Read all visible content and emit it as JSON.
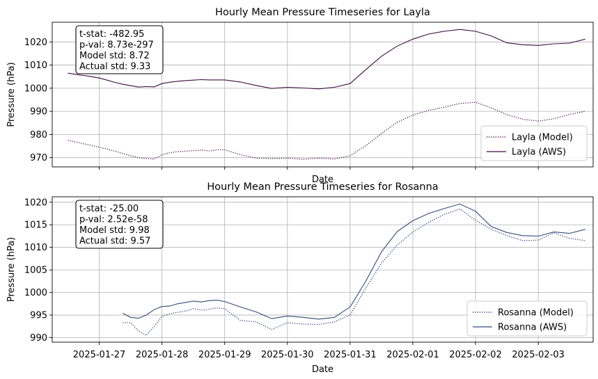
{
  "chart_data": [
    {
      "type": "line",
      "title": "Hourly Mean Pressure Timeseries for Layla",
      "xlabel": "Date",
      "ylabel": "Pressure (hPa)",
      "x_range": [
        "2025-01-26T06:00",
        "2025-02-03T21:00"
      ],
      "ylim": [
        966,
        1028.5
      ],
      "yticks": [
        970,
        980,
        990,
        1000,
        1010,
        1020
      ],
      "xticks": [
        "2025-01-27",
        "2025-01-28",
        "2025-01-29",
        "2025-01-30",
        "2025-01-31",
        "2025-02-01",
        "2025-02-02",
        "2025-02-03"
      ],
      "xtick_labels_visible": false,
      "grid": true,
      "legend_position": "lower right",
      "stats_box": [
        "t-stat: -482.95",
        "p-val: 8.73e-297",
        "Model std: 8.72",
        "Actual std: 9.33"
      ],
      "series": [
        {
          "name": "Layla (Model)",
          "style": "dotted",
          "color": "#4b0b4f",
          "x": [
            "2025-01-26T12:00",
            "2025-01-26T15:00",
            "2025-01-26T18:00",
            "2025-01-26T21:00",
            "2025-01-27T00:00",
            "2025-01-27T03:00",
            "2025-01-27T06:00",
            "2025-01-27T09:00",
            "2025-01-27T12:00",
            "2025-01-27T15:00",
            "2025-01-27T18:00",
            "2025-01-27T21:00",
            "2025-01-28T00:00",
            "2025-01-28T03:00",
            "2025-01-28T06:00",
            "2025-01-28T09:00",
            "2025-01-28T12:00",
            "2025-01-28T15:00",
            "2025-01-28T18:00",
            "2025-01-28T21:00",
            "2025-01-29T00:00",
            "2025-01-29T06:00",
            "2025-01-29T12:00",
            "2025-01-29T18:00",
            "2025-01-30T00:00",
            "2025-01-30T06:00",
            "2025-01-30T12:00",
            "2025-01-30T18:00",
            "2025-01-31T00:00",
            "2025-01-31T06:00",
            "2025-01-31T12:00",
            "2025-01-31T18:00",
            "2025-02-01T00:00",
            "2025-02-01T06:00",
            "2025-02-01T12:00",
            "2025-02-01T18:00",
            "2025-02-02T00:00",
            "2025-02-02T06:00",
            "2025-02-02T12:00",
            "2025-02-02T18:00",
            "2025-02-03T00:00",
            "2025-02-03T06:00",
            "2025-02-03T12:00",
            "2025-02-03T18:00"
          ],
          "values": [
            977.5,
            976.8,
            976.0,
            975.3,
            974.5,
            973.7,
            972.8,
            971.8,
            970.8,
            970.0,
            969.6,
            969.4,
            971.3,
            972.1,
            972.6,
            972.8,
            973.0,
            973.3,
            972.9,
            973.4,
            973.4,
            971.3,
            969.8,
            969.6,
            969.8,
            969.3,
            969.8,
            969.4,
            970.8,
            975.2,
            980.4,
            985.3,
            988.4,
            990.4,
            991.8,
            993.4,
            993.9,
            991.5,
            988.6,
            986.6,
            985.8,
            986.8,
            988.7,
            990.0
          ]
        },
        {
          "name": "Layla (AWS)",
          "style": "solid",
          "color": "#3e0a3f",
          "x": [
            "2025-01-26T12:00",
            "2025-01-26T15:00",
            "2025-01-26T18:00",
            "2025-01-26T21:00",
            "2025-01-27T00:00",
            "2025-01-27T03:00",
            "2025-01-27T06:00",
            "2025-01-27T09:00",
            "2025-01-27T12:00",
            "2025-01-27T15:00",
            "2025-01-27T18:00",
            "2025-01-27T21:00",
            "2025-01-28T00:00",
            "2025-01-28T03:00",
            "2025-01-28T06:00",
            "2025-01-28T09:00",
            "2025-01-28T12:00",
            "2025-01-28T15:00",
            "2025-01-28T18:00",
            "2025-01-28T21:00",
            "2025-01-29T00:00",
            "2025-01-29T06:00",
            "2025-01-29T12:00",
            "2025-01-29T18:00",
            "2025-01-30T00:00",
            "2025-01-30T06:00",
            "2025-01-30T12:00",
            "2025-01-30T18:00",
            "2025-01-31T00:00",
            "2025-01-31T06:00",
            "2025-01-31T12:00",
            "2025-01-31T18:00",
            "2025-02-01T00:00",
            "2025-02-01T06:00",
            "2025-02-01T12:00",
            "2025-02-01T18:00",
            "2025-02-02T00:00",
            "2025-02-02T06:00",
            "2025-02-02T12:00",
            "2025-02-02T18:00",
            "2025-02-03T00:00",
            "2025-02-03T06:00",
            "2025-02-03T12:00",
            "2025-02-03T18:00"
          ],
          "values": [
            1006.5,
            1006.0,
            1005.5,
            1005.0,
            1004.4,
            1003.5,
            1002.5,
            1001.7,
            1001.1,
            1000.5,
            1000.7,
            1000.6,
            1002.0,
            1002.6,
            1003.0,
            1003.3,
            1003.5,
            1003.7,
            1003.6,
            1003.6,
            1003.6,
            1002.7,
            1001.2,
            999.9,
            1000.4,
            1000.1,
            999.7,
            1000.4,
            1002.0,
            1008.0,
            1013.8,
            1018.2,
            1021.2,
            1023.4,
            1024.6,
            1025.4,
            1024.6,
            1022.6,
            1019.6,
            1018.8,
            1018.5,
            1019.2,
            1019.5,
            1021.2
          ]
        }
      ]
    },
    {
      "type": "line",
      "title": "Hourly Mean Pressure Timeseries for Rosanna",
      "xlabel": "Date",
      "ylabel": "Pressure (hPa)",
      "x_range": [
        "2025-01-26T06:00",
        "2025-02-03T21:00"
      ],
      "ylim": [
        989,
        1021.2
      ],
      "yticks": [
        990,
        995,
        1000,
        1005,
        1010,
        1015,
        1020
      ],
      "xticks": [
        "2025-01-27",
        "2025-01-28",
        "2025-01-29",
        "2025-01-30",
        "2025-01-31",
        "2025-02-01",
        "2025-02-02",
        "2025-02-03"
      ],
      "grid": true,
      "legend_position": "lower right",
      "stats_box": [
        "t-stat: -25.00",
        "p-val: 2.52e-58",
        "Model std: 9.98",
        "Actual std: 9.57"
      ],
      "series": [
        {
          "name": "Rosanna (Model)",
          "style": "dotted",
          "color": "#2b3c80",
          "x": [
            "2025-01-27T09:00",
            "2025-01-27T12:00",
            "2025-01-27T15:00",
            "2025-01-27T18:00",
            "2025-01-27T21:00",
            "2025-01-28T00:00",
            "2025-01-28T03:00",
            "2025-01-28T06:00",
            "2025-01-28T09:00",
            "2025-01-28T12:00",
            "2025-01-28T15:00",
            "2025-01-28T18:00",
            "2025-01-28T21:00",
            "2025-01-29T00:00",
            "2025-01-29T06:00",
            "2025-01-29T12:00",
            "2025-01-29T18:00",
            "2025-01-30T00:00",
            "2025-01-30T06:00",
            "2025-01-30T12:00",
            "2025-01-30T18:00",
            "2025-01-31T00:00",
            "2025-01-31T06:00",
            "2025-01-31T12:00",
            "2025-01-31T18:00",
            "2025-02-01T00:00",
            "2025-02-01T06:00",
            "2025-02-01T12:00",
            "2025-02-01T18:00",
            "2025-02-02T00:00",
            "2025-02-02T06:00",
            "2025-02-02T12:00",
            "2025-02-02T18:00",
            "2025-02-03T00:00",
            "2025-02-03T06:00",
            "2025-02-03T12:00",
            "2025-02-03T18:00"
          ],
          "values": [
            993.3,
            993.3,
            991.5,
            990.5,
            992.5,
            994.7,
            995.3,
            995.6,
            995.9,
            996.4,
            996.1,
            996.3,
            996.6,
            996.4,
            993.8,
            993.5,
            991.8,
            993.3,
            993.0,
            992.9,
            993.5,
            995.0,
            1001.0,
            1006.5,
            1010.5,
            1013.4,
            1015.5,
            1017.3,
            1018.5,
            1016.0,
            1014.0,
            1012.6,
            1011.5,
            1011.6,
            1013.2,
            1012.0,
            1011.5
          ]
        },
        {
          "name": "Rosanna (AWS)",
          "style": "solid",
          "color": "#2f4c7a",
          "x": [
            "2025-01-27T09:00",
            "2025-01-27T12:00",
            "2025-01-27T15:00",
            "2025-01-27T18:00",
            "2025-01-27T21:00",
            "2025-01-28T00:00",
            "2025-01-28T03:00",
            "2025-01-28T06:00",
            "2025-01-28T09:00",
            "2025-01-28T12:00",
            "2025-01-28T15:00",
            "2025-01-28T18:00",
            "2025-01-28T21:00",
            "2025-01-29T00:00",
            "2025-01-29T06:00",
            "2025-01-29T12:00",
            "2025-01-29T18:00",
            "2025-01-30T00:00",
            "2025-01-30T06:00",
            "2025-01-30T12:00",
            "2025-01-30T18:00",
            "2025-01-31T00:00",
            "2025-01-31T06:00",
            "2025-01-31T12:00",
            "2025-01-31T18:00",
            "2025-02-01T00:00",
            "2025-02-01T06:00",
            "2025-02-01T12:00",
            "2025-02-01T18:00",
            "2025-02-02T00:00",
            "2025-02-02T06:00",
            "2025-02-02T12:00",
            "2025-02-02T18:00",
            "2025-02-03T00:00",
            "2025-02-03T06:00",
            "2025-02-03T12:00",
            "2025-02-03T18:00"
          ],
          "values": [
            995.4,
            994.5,
            994.3,
            995.0,
            996.2,
            996.9,
            997.0,
            997.5,
            997.8,
            998.1,
            997.9,
            998.2,
            998.3,
            998.0,
            996.8,
            995.7,
            994.2,
            994.8,
            994.5,
            994.1,
            994.5,
            996.8,
            1002.5,
            1009.0,
            1013.5,
            1015.9,
            1017.5,
            1018.6,
            1019.6,
            1018.0,
            1014.6,
            1013.3,
            1012.6,
            1012.5,
            1013.4,
            1013.1,
            1014.0
          ]
        }
      ]
    }
  ]
}
